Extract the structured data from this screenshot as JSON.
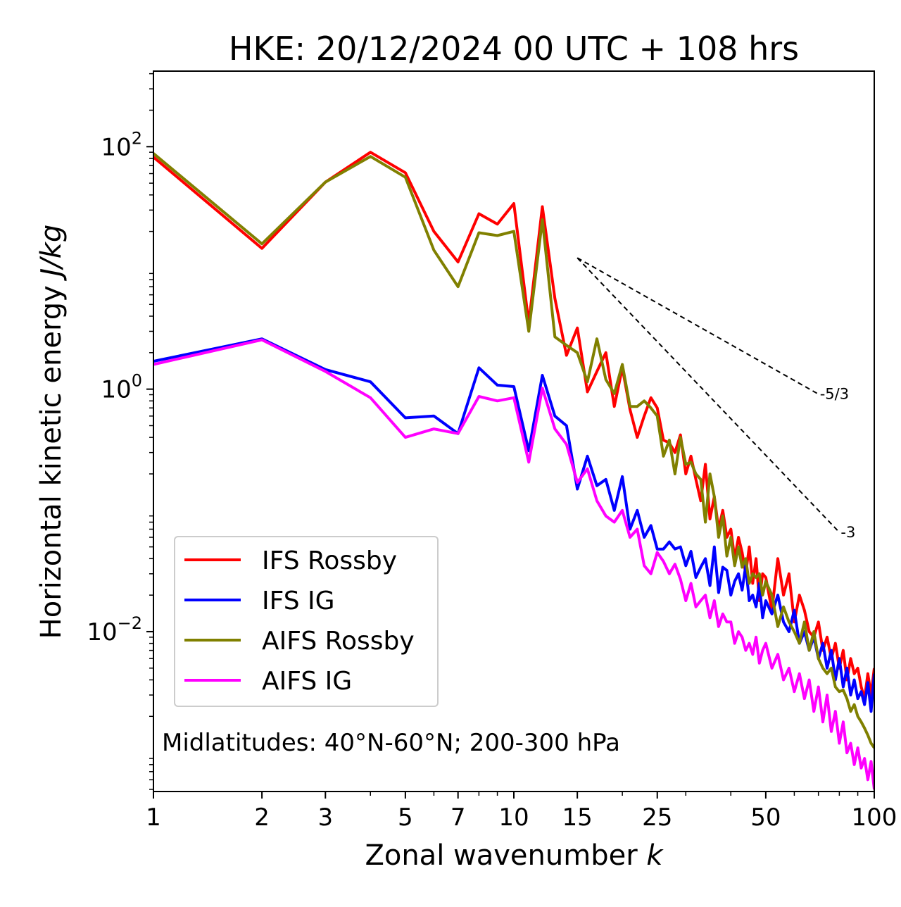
{
  "chart_data": {
    "type": "line",
    "title": "HKE: 20/12/2024 00 UTC + 108 hrs",
    "xlabel": "Zonal wavenumber",
    "xlabel_var": "k",
    "ylabel": "Horizontal kinetic energy",
    "ylabel_unit": "J/kg",
    "xscale": "log",
    "yscale": "log",
    "xlim": [
      1,
      100
    ],
    "ylim": [
      0.00048,
      420
    ],
    "xticks": [
      1,
      2,
      3,
      5,
      7,
      10,
      15,
      25,
      50,
      100
    ],
    "yticks": [
      {
        "value": 100,
        "base": "10",
        "exp": "2"
      },
      {
        "value": 1,
        "base": "10",
        "exp": "0"
      },
      {
        "value": 0.01,
        "base": "10",
        "exp": "−2"
      }
    ],
    "legend_position": "lower-left",
    "annotation": "Midlatitudes: 40°N-60°N; 200-300 hPa",
    "reference_lines": [
      {
        "label": "-5/3",
        "slope": -1.6667,
        "x": [
          15,
          70
        ],
        "y": [
          12.1,
          0.91
        ]
      },
      {
        "label": "-3",
        "slope": -3,
        "x": [
          15,
          80
        ],
        "y": [
          12.1,
          0.066
        ]
      }
    ],
    "series": [
      {
        "name": "IFS Rossby",
        "color": "#ff0000",
        "x": [
          1,
          2,
          3,
          4,
          5,
          6,
          7,
          8,
          9,
          10,
          11,
          12,
          13,
          14,
          15,
          16,
          17,
          18,
          19,
          20,
          21,
          22,
          23,
          24,
          25,
          26,
          27,
          28,
          29,
          30,
          31,
          32,
          33,
          34,
          35,
          36,
          37,
          38,
          39,
          40,
          41,
          42,
          43,
          44,
          45,
          46,
          47,
          48,
          49,
          50,
          52,
          54,
          56,
          58,
          60,
          62,
          64,
          66,
          68,
          70,
          72,
          74,
          76,
          78,
          80,
          82,
          84,
          86,
          88,
          90,
          92,
          94,
          96,
          98,
          100
        ],
        "y": [
          82,
          14.5,
          51,
          90,
          61,
          20,
          11.2,
          28,
          23,
          34,
          3.5,
          32,
          5.6,
          1.9,
          3.2,
          0.95,
          1.4,
          2.0,
          0.72,
          1.5,
          0.68,
          0.4,
          0.6,
          0.85,
          0.7,
          0.38,
          0.36,
          0.3,
          0.42,
          0.2,
          0.28,
          0.18,
          0.12,
          0.24,
          0.085,
          0.13,
          0.07,
          0.1,
          0.06,
          0.07,
          0.04,
          0.06,
          0.045,
          0.03,
          0.05,
          0.025,
          0.04,
          0.018,
          0.03,
          0.028,
          0.015,
          0.04,
          0.02,
          0.03,
          0.012,
          0.02,
          0.015,
          0.01,
          0.009,
          0.012,
          0.007,
          0.009,
          0.006,
          0.008,
          0.005,
          0.007,
          0.004,
          0.006,
          0.0045,
          0.005,
          0.0035,
          0.0028,
          0.0045,
          0.003,
          0.005
        ]
      },
      {
        "name": "IFS IG",
        "color": "#0000ff",
        "x": [
          1,
          2,
          3,
          4,
          5,
          6,
          7,
          8,
          9,
          10,
          11,
          12,
          13,
          14,
          15,
          16,
          17,
          18,
          19,
          20,
          21,
          22,
          23,
          24,
          25,
          26,
          27,
          28,
          29,
          30,
          31,
          32,
          33,
          34,
          35,
          36,
          37,
          38,
          39,
          40,
          41,
          42,
          43,
          44,
          45,
          46,
          47,
          48,
          49,
          50,
          52,
          54,
          56,
          58,
          60,
          62,
          64,
          66,
          68,
          70,
          72,
          74,
          76,
          78,
          80,
          82,
          84,
          86,
          88,
          90,
          92,
          94,
          96,
          98,
          100
        ],
        "y": [
          1.7,
          2.6,
          1.45,
          1.15,
          0.58,
          0.6,
          0.43,
          1.5,
          1.08,
          1.05,
          0.31,
          1.3,
          0.6,
          0.5,
          0.15,
          0.28,
          0.16,
          0.18,
          0.1,
          0.19,
          0.07,
          0.1,
          0.06,
          0.075,
          0.048,
          0.048,
          0.055,
          0.048,
          0.05,
          0.035,
          0.046,
          0.028,
          0.034,
          0.04,
          0.024,
          0.05,
          0.021,
          0.034,
          0.032,
          0.02,
          0.026,
          0.03,
          0.022,
          0.035,
          0.018,
          0.02,
          0.016,
          0.025,
          0.013,
          0.018,
          0.014,
          0.02,
          0.012,
          0.01,
          0.015,
          0.008,
          0.01,
          0.007,
          0.009,
          0.006,
          0.008,
          0.005,
          0.007,
          0.004,
          0.006,
          0.0035,
          0.005,
          0.003,
          0.004,
          0.0028,
          0.0032,
          0.0025,
          0.0038,
          0.0022,
          0.0045
        ]
      },
      {
        "name": "AIFS Rossby",
        "color": "#808000",
        "x": [
          1,
          2,
          3,
          4,
          5,
          6,
          7,
          8,
          9,
          10,
          11,
          12,
          13,
          14,
          15,
          16,
          17,
          18,
          19,
          20,
          21,
          22,
          23,
          24,
          25,
          26,
          27,
          28,
          29,
          30,
          31,
          32,
          33,
          34,
          35,
          36,
          37,
          38,
          39,
          40,
          41,
          42,
          43,
          44,
          45,
          46,
          47,
          48,
          49,
          50,
          52,
          54,
          56,
          58,
          60,
          62,
          64,
          66,
          68,
          70,
          72,
          74,
          76,
          78,
          80,
          82,
          84,
          86,
          88,
          90,
          92,
          94,
          96,
          98,
          100
        ],
        "y": [
          88,
          15.8,
          51,
          83,
          56,
          14,
          7,
          19.5,
          18.5,
          20,
          3.0,
          25,
          2.7,
          2.3,
          2.0,
          1.15,
          2.6,
          1.2,
          0.92,
          1.6,
          0.72,
          0.72,
          0.8,
          0.7,
          0.6,
          0.28,
          0.38,
          0.2,
          0.4,
          0.24,
          0.25,
          0.2,
          0.18,
          0.08,
          0.2,
          0.13,
          0.06,
          0.09,
          0.042,
          0.06,
          0.035,
          0.05,
          0.034,
          0.04,
          0.025,
          0.03,
          0.028,
          0.03,
          0.02,
          0.026,
          0.02,
          0.011,
          0.016,
          0.012,
          0.01,
          0.008,
          0.012,
          0.007,
          0.01,
          0.006,
          0.005,
          0.0045,
          0.005,
          0.0035,
          0.0032,
          0.0033,
          0.0028,
          0.0022,
          0.0025,
          0.002,
          0.0018,
          0.0016,
          0.0014,
          0.0012,
          0.0011
        ]
      },
      {
        "name": "AIFS IG",
        "color": "#ff00ff",
        "x": [
          1,
          2,
          3,
          4,
          5,
          6,
          7,
          8,
          9,
          10,
          11,
          12,
          13,
          14,
          15,
          16,
          17,
          18,
          19,
          20,
          21,
          22,
          23,
          24,
          25,
          26,
          27,
          28,
          29,
          30,
          31,
          32,
          33,
          34,
          35,
          36,
          37,
          38,
          39,
          40,
          41,
          42,
          43,
          44,
          45,
          46,
          47,
          48,
          49,
          50,
          52,
          54,
          56,
          58,
          60,
          62,
          64,
          66,
          68,
          70,
          72,
          74,
          76,
          78,
          80,
          82,
          84,
          86,
          88,
          90,
          92,
          94,
          96,
          98,
          100
        ],
        "y": [
          1.6,
          2.55,
          1.4,
          0.85,
          0.4,
          0.47,
          0.43,
          0.87,
          0.8,
          0.85,
          0.25,
          1.02,
          0.47,
          0.35,
          0.17,
          0.22,
          0.12,
          0.09,
          0.08,
          0.1,
          0.06,
          0.07,
          0.035,
          0.03,
          0.045,
          0.038,
          0.03,
          0.036,
          0.027,
          0.018,
          0.025,
          0.016,
          0.018,
          0.02,
          0.013,
          0.018,
          0.011,
          0.014,
          0.012,
          0.012,
          0.008,
          0.01,
          0.009,
          0.007,
          0.008,
          0.0065,
          0.009,
          0.0055,
          0.007,
          0.008,
          0.005,
          0.0065,
          0.004,
          0.005,
          0.0032,
          0.0045,
          0.0028,
          0.004,
          0.0022,
          0.0035,
          0.0018,
          0.003,
          0.0015,
          0.0022,
          0.0012,
          0.0018,
          0.001,
          0.0012,
          0.0008,
          0.0011,
          0.00075,
          0.0009,
          0.0006,
          0.00085,
          0.0005
        ]
      }
    ]
  }
}
